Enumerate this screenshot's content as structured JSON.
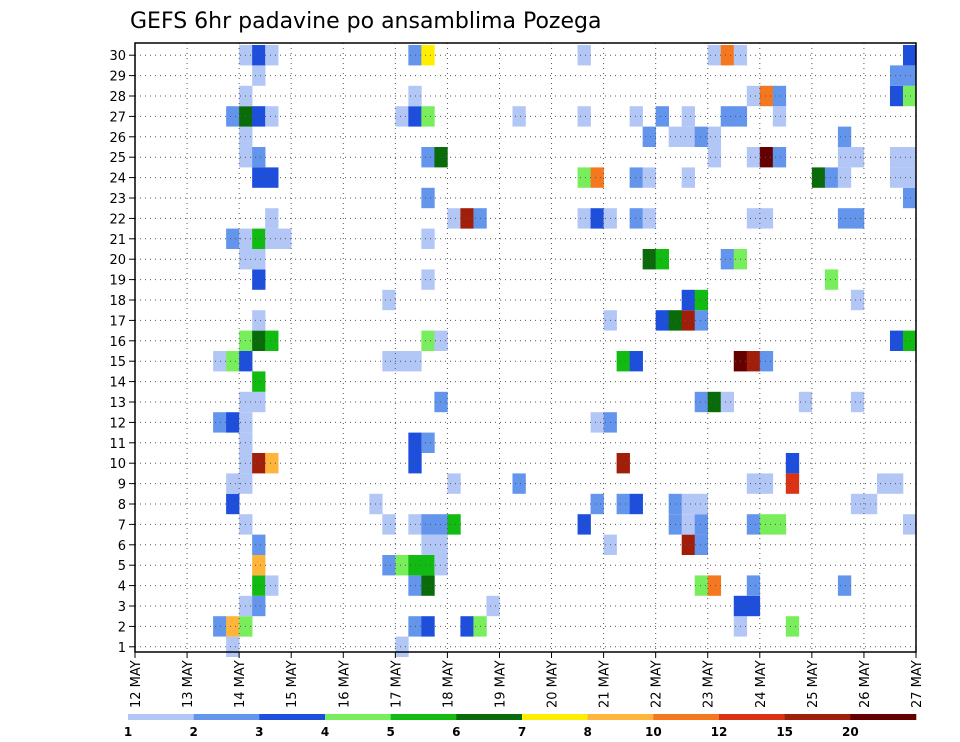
{
  "chart_data": {
    "type": "heatmap",
    "title": "GEFS 6hr padavine po ansamblima Pozega",
    "xlabel": "",
    "ylabel": "",
    "x_tick_labels": [
      "12 MAY",
      "13 MAY",
      "14 MAY",
      "15 MAY",
      "16 MAY",
      "17 MAY",
      "18 MAY",
      "19 MAY",
      "20 MAY",
      "21 MAY",
      "22 MAY",
      "23 MAY",
      "24 MAY",
      "25 MAY",
      "26 MAY",
      "27 MAY"
    ],
    "y_tick_labels": [
      "1",
      "2",
      "3",
      "4",
      "5",
      "6",
      "7",
      "8",
      "9",
      "10",
      "11",
      "12",
      "13",
      "14",
      "15",
      "16",
      "17",
      "18",
      "19",
      "20",
      "21",
      "22",
      "23",
      "24",
      "25",
      "26",
      "27",
      "28",
      "29",
      "30"
    ],
    "x_range": [
      0,
      60
    ],
    "y_range": [
      0,
      30
    ],
    "grid": true,
    "colorbar": {
      "labels": [
        "1",
        "2",
        "3",
        "4",
        "5",
        "6",
        "7",
        "8",
        "10",
        "12",
        "15",
        "20"
      ],
      "colors": [
        "#b3c7f7",
        "#6495ed",
        "#1e4fdc",
        "#79ee5d",
        "#12bb12",
        "#0a6b0a",
        "#ffee00",
        "#ffb43c",
        "#f5781e",
        "#dc3214",
        "#a01e0a",
        "#640000"
      ]
    },
    "cells": [
      [
        8,
        0,
        1
      ],
      [
        9,
        0,
        2
      ],
      [
        10,
        0,
        1
      ],
      [
        12,
        0,
        2
      ],
      [
        13,
        0,
        1
      ],
      [
        20,
        0,
        1
      ],
      [
        30,
        0,
        2
      ],
      [
        35,
        0,
        1
      ],
      [
        36,
        0,
        1
      ],
      [
        7,
        1,
        1
      ],
      [
        20,
        1,
        1
      ],
      [
        6,
        2,
        2
      ],
      [
        7,
        2,
        8
      ],
      [
        8,
        2,
        4
      ],
      [
        21,
        2,
        2
      ],
      [
        22,
        2,
        3
      ],
      [
        25,
        2,
        3
      ],
      [
        26,
        2,
        4
      ],
      [
        46,
        2,
        1
      ],
      [
        50,
        2,
        4
      ],
      [
        8,
        3,
        1
      ],
      [
        9,
        3,
        2
      ],
      [
        27,
        3,
        1
      ],
      [
        46,
        3,
        3
      ],
      [
        47,
        3,
        3
      ],
      [
        9,
        4,
        5
      ],
      [
        10,
        4,
        1
      ],
      [
        21,
        4,
        2
      ],
      [
        22,
        4,
        6
      ],
      [
        43,
        4,
        4
      ],
      [
        44,
        4,
        9
      ],
      [
        47,
        4,
        2
      ],
      [
        54,
        4,
        2
      ],
      [
        9,
        5,
        8
      ],
      [
        19,
        5,
        2
      ],
      [
        20,
        5,
        4
      ],
      [
        21,
        5,
        5
      ],
      [
        22,
        5,
        5
      ],
      [
        23,
        5,
        1
      ],
      [
        9,
        6,
        2
      ],
      [
        22,
        6,
        1
      ],
      [
        23,
        6,
        1
      ],
      [
        36,
        6,
        1
      ],
      [
        42,
        6,
        11
      ],
      [
        43,
        6,
        2
      ],
      [
        8,
        7,
        1
      ],
      [
        19,
        7,
        1
      ],
      [
        21,
        7,
        1
      ],
      [
        22,
        7,
        2
      ],
      [
        23,
        7,
        2
      ],
      [
        24,
        7,
        5
      ],
      [
        34,
        7,
        3
      ],
      [
        41,
        7,
        2
      ],
      [
        42,
        7,
        1
      ],
      [
        43,
        7,
        2
      ],
      [
        47,
        7,
        2
      ],
      [
        48,
        7,
        4
      ],
      [
        49,
        7,
        4
      ],
      [
        59,
        7,
        1
      ],
      [
        7,
        8,
        3
      ],
      [
        18,
        8,
        1
      ],
      [
        35,
        8,
        2
      ],
      [
        37,
        8,
        2
      ],
      [
        38,
        8,
        3
      ],
      [
        41,
        8,
        2
      ],
      [
        42,
        8,
        1
      ],
      [
        43,
        8,
        1
      ],
      [
        55,
        8,
        1
      ],
      [
        56,
        8,
        1
      ],
      [
        7,
        9,
        1
      ],
      [
        8,
        9,
        1
      ],
      [
        24,
        9,
        1
      ],
      [
        29,
        9,
        2
      ],
      [
        47,
        9,
        1
      ],
      [
        48,
        9,
        1
      ],
      [
        50,
        9,
        10
      ],
      [
        57,
        9,
        1
      ],
      [
        58,
        9,
        1
      ],
      [
        8,
        10,
        1
      ],
      [
        9,
        10,
        11
      ],
      [
        10,
        10,
        8
      ],
      [
        21,
        10,
        3
      ],
      [
        37,
        10,
        11
      ],
      [
        50,
        10,
        3
      ],
      [
        8,
        11,
        1
      ],
      [
        21,
        11,
        3
      ],
      [
        22,
        11,
        2
      ],
      [
        6,
        12,
        2
      ],
      [
        7,
        12,
        3
      ],
      [
        8,
        12,
        1
      ],
      [
        35,
        12,
        1
      ],
      [
        36,
        12,
        2
      ],
      [
        8,
        13,
        1
      ],
      [
        9,
        13,
        1
      ],
      [
        23,
        13,
        2
      ],
      [
        43,
        13,
        2
      ],
      [
        44,
        13,
        6
      ],
      [
        45,
        13,
        1
      ],
      [
        51,
        13,
        1
      ],
      [
        55,
        13,
        1
      ],
      [
        9,
        14,
        5
      ],
      [
        6,
        15,
        1
      ],
      [
        7,
        15,
        4
      ],
      [
        8,
        15,
        3
      ],
      [
        19,
        15,
        1
      ],
      [
        20,
        15,
        1
      ],
      [
        21,
        15,
        1
      ],
      [
        37,
        15,
        5
      ],
      [
        38,
        15,
        3
      ],
      [
        46,
        15,
        12
      ],
      [
        47,
        15,
        11
      ],
      [
        48,
        15,
        2
      ],
      [
        8,
        16,
        4
      ],
      [
        9,
        16,
        6
      ],
      [
        10,
        16,
        5
      ],
      [
        22,
        16,
        4
      ],
      [
        23,
        16,
        1
      ],
      [
        58,
        16,
        3
      ],
      [
        59,
        16,
        5
      ],
      [
        9,
        17,
        1
      ],
      [
        36,
        17,
        1
      ],
      [
        40,
        17,
        3
      ],
      [
        41,
        17,
        6
      ],
      [
        42,
        17,
        11
      ],
      [
        43,
        17,
        2
      ],
      [
        19,
        18,
        1
      ],
      [
        42,
        18,
        3
      ],
      [
        43,
        18,
        5
      ],
      [
        55,
        18,
        1
      ],
      [
        9,
        19,
        3
      ],
      [
        22,
        19,
        1
      ],
      [
        53,
        19,
        4
      ],
      [
        8,
        20,
        1
      ],
      [
        9,
        20,
        1
      ],
      [
        39,
        20,
        6
      ],
      [
        40,
        20,
        5
      ],
      [
        45,
        20,
        2
      ],
      [
        46,
        20,
        4
      ],
      [
        22,
        21,
        1
      ],
      [
        7,
        21,
        2
      ],
      [
        8,
        21,
        1
      ],
      [
        9,
        21,
        5
      ],
      [
        10,
        21,
        1
      ],
      [
        11,
        21,
        1
      ],
      [
        10,
        22,
        1
      ],
      [
        24,
        22,
        1
      ],
      [
        25,
        22,
        11
      ],
      [
        26,
        22,
        2
      ],
      [
        34,
        22,
        1
      ],
      [
        35,
        22,
        3
      ],
      [
        36,
        22,
        1
      ],
      [
        38,
        22,
        2
      ],
      [
        39,
        22,
        1
      ],
      [
        47,
        22,
        1
      ],
      [
        48,
        22,
        1
      ],
      [
        54,
        22,
        2
      ],
      [
        55,
        22,
        2
      ],
      [
        22,
        23,
        2
      ],
      [
        59,
        23,
        2
      ],
      [
        9,
        24,
        3
      ],
      [
        10,
        24,
        3
      ],
      [
        34,
        24,
        4
      ],
      [
        35,
        24,
        9
      ],
      [
        38,
        24,
        2
      ],
      [
        39,
        24,
        1
      ],
      [
        42,
        24,
        1
      ],
      [
        52,
        24,
        6
      ],
      [
        53,
        24,
        2
      ],
      [
        54,
        24,
        1
      ],
      [
        58,
        24,
        1
      ],
      [
        59,
        24,
        1
      ],
      [
        8,
        25,
        1
      ],
      [
        9,
        25,
        2
      ],
      [
        22,
        25,
        2
      ],
      [
        23,
        25,
        6
      ],
      [
        44,
        25,
        1
      ],
      [
        47,
        25,
        1
      ],
      [
        48,
        25,
        12
      ],
      [
        49,
        25,
        2
      ],
      [
        54,
        25,
        1
      ],
      [
        55,
        25,
        1
      ],
      [
        58,
        25,
        1
      ],
      [
        59,
        25,
        1
      ],
      [
        8,
        26,
        1
      ],
      [
        39,
        26,
        2
      ],
      [
        41,
        26,
        1
      ],
      [
        42,
        26,
        1
      ],
      [
        43,
        26,
        2
      ],
      [
        44,
        26,
        1
      ],
      [
        54,
        26,
        2
      ],
      [
        7,
        27,
        2
      ],
      [
        8,
        27,
        6
      ],
      [
        9,
        27,
        3
      ],
      [
        10,
        27,
        1
      ],
      [
        20,
        27,
        1
      ],
      [
        21,
        27,
        3
      ],
      [
        22,
        27,
        4
      ],
      [
        29,
        27,
        1
      ],
      [
        34,
        27,
        1
      ],
      [
        38,
        27,
        1
      ],
      [
        40,
        27,
        2
      ],
      [
        42,
        27,
        1
      ],
      [
        45,
        27,
        2
      ],
      [
        46,
        27,
        2
      ],
      [
        49,
        27,
        1
      ],
      [
        8,
        28,
        1
      ],
      [
        21,
        28,
        1
      ],
      [
        47,
        28,
        1
      ],
      [
        48,
        28,
        9
      ],
      [
        49,
        28,
        2
      ],
      [
        58,
        28,
        3
      ],
      [
        59,
        28,
        4
      ],
      [
        9,
        29,
        1
      ],
      [
        58,
        29,
        2
      ],
      [
        59,
        29,
        2
      ],
      [
        8,
        30,
        1
      ],
      [
        9,
        30,
        3
      ],
      [
        10,
        30,
        1
      ],
      [
        21,
        30,
        2
      ],
      [
        22,
        30,
        7
      ],
      [
        34,
        30,
        1
      ],
      [
        44,
        30,
        1
      ],
      [
        45,
        30,
        9
      ],
      [
        46,
        30,
        1
      ],
      [
        59,
        30,
        3
      ]
    ],
    "bottom_row_cells": [
      [
        8,
        1
      ],
      [
        9,
        2
      ],
      [
        10,
        1
      ],
      [
        25,
        3
      ],
      [
        26,
        5
      ],
      [
        50,
        2
      ],
      [
        51,
        1
      ],
      [
        53,
        1
      ],
      [
        54,
        1
      ]
    ]
  }
}
